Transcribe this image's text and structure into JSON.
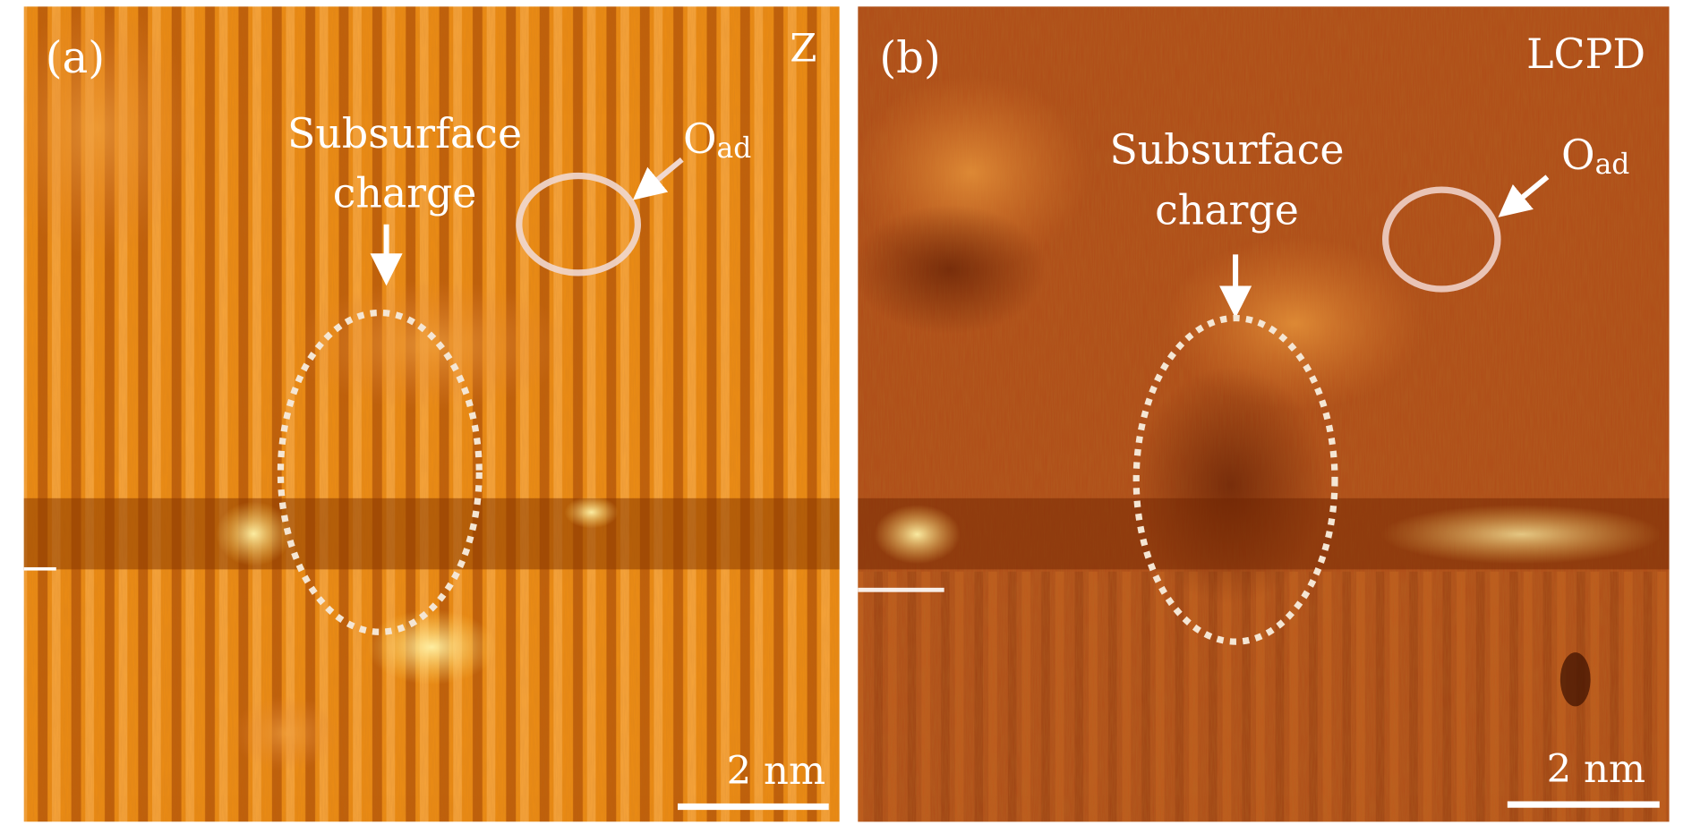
{
  "panels": [
    {
      "panel_label": "(a)",
      "channel": "Z",
      "annotation_region": "Subsurface",
      "annotation_region_2": "charge",
      "annotation_adsorbate": "O",
      "annotation_adsorbate_sub": "ad",
      "scale_bar": "2 nm"
    },
    {
      "panel_label": "(b)",
      "channel": "LCPD",
      "annotation_region": "Subsurface",
      "annotation_region_2": "charge",
      "annotation_adsorbate": "O",
      "annotation_adsorbate_sub": "ad",
      "scale_bar": "2 nm"
    }
  ],
  "colors": {
    "z_base": "#e8860e",
    "z_dark": "#b25203",
    "lcpd_base": "#b4501a",
    "lcpd_dark": "#7a2a08",
    "annotation": "#ffffff"
  }
}
